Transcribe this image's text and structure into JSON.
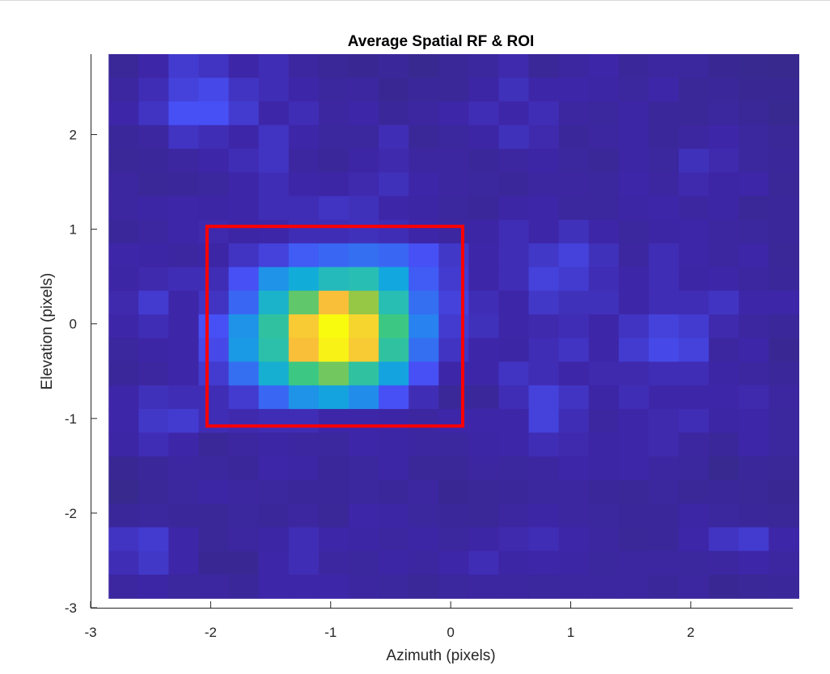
{
  "chart_data": {
    "type": "heatmap",
    "title": "Average Spatial RF & ROI",
    "xlabel": "Azimuth (pixels)",
    "ylabel": "Elevation (pixels)",
    "xlim": [
      -3,
      2.85
    ],
    "ylim": [
      -3,
      2.85
    ],
    "xticks": [
      -3,
      -2,
      -1,
      0,
      1,
      2
    ],
    "yticks": [
      -3,
      -2,
      -1,
      0,
      1,
      2
    ],
    "colormap": "parula",
    "grid": false,
    "heatmap": {
      "x_start": -2.85,
      "x_step": 0.25,
      "y_start": 2.85,
      "y_step": -0.25,
      "rows": [
        [
          0.05,
          0.1,
          0.16,
          0.14,
          0.1,
          0.12,
          0.08,
          0.05,
          0.04,
          0.06,
          0.03,
          0.05,
          0.07,
          0.11,
          0.05,
          0.08,
          0.1,
          0.06,
          0.08,
          0.07,
          0.04,
          0.03,
          0.02
        ],
        [
          0.08,
          0.12,
          0.18,
          0.2,
          0.14,
          0.12,
          0.1,
          0.07,
          0.08,
          0.04,
          0.06,
          0.05,
          0.09,
          0.13,
          0.1,
          0.1,
          0.09,
          0.07,
          0.1,
          0.05,
          0.06,
          0.04,
          0.04
        ],
        [
          0.1,
          0.14,
          0.22,
          0.22,
          0.16,
          0.1,
          0.12,
          0.08,
          0.1,
          0.06,
          0.08,
          0.1,
          0.12,
          0.1,
          0.12,
          0.08,
          0.07,
          0.09,
          0.06,
          0.05,
          0.07,
          0.05,
          0.03
        ],
        [
          0.06,
          0.08,
          0.14,
          0.12,
          0.1,
          0.14,
          0.1,
          0.07,
          0.07,
          0.12,
          0.05,
          0.07,
          0.09,
          0.13,
          0.11,
          0.06,
          0.08,
          0.09,
          0.06,
          0.08,
          0.1,
          0.07,
          0.05
        ],
        [
          0.05,
          0.06,
          0.08,
          0.1,
          0.12,
          0.14,
          0.08,
          0.06,
          0.09,
          0.11,
          0.08,
          0.08,
          0.06,
          0.08,
          0.09,
          0.07,
          0.05,
          0.09,
          0.07,
          0.13,
          0.11,
          0.07,
          0.06
        ],
        [
          0.08,
          0.05,
          0.06,
          0.07,
          0.1,
          0.12,
          0.1,
          0.09,
          0.11,
          0.13,
          0.1,
          0.08,
          0.07,
          0.06,
          0.08,
          0.08,
          0.07,
          0.1,
          0.08,
          0.11,
          0.09,
          0.1,
          0.05
        ],
        [
          0.08,
          0.09,
          0.1,
          0.09,
          0.1,
          0.12,
          0.12,
          0.14,
          0.13,
          0.1,
          0.09,
          0.07,
          0.06,
          0.09,
          0.1,
          0.07,
          0.07,
          0.09,
          0.1,
          0.08,
          0.09,
          0.05,
          0.06
        ],
        [
          0.06,
          0.08,
          0.1,
          0.11,
          0.09,
          0.1,
          0.12,
          0.12,
          0.13,
          0.12,
          0.1,
          0.08,
          0.09,
          0.12,
          0.1,
          0.13,
          0.1,
          0.07,
          0.09,
          0.1,
          0.08,
          0.07,
          0.06
        ],
        [
          0.1,
          0.09,
          0.08,
          0.09,
          0.14,
          0.18,
          0.25,
          0.28,
          0.3,
          0.28,
          0.22,
          0.15,
          0.1,
          0.12,
          0.15,
          0.18,
          0.13,
          0.08,
          0.12,
          0.1,
          0.08,
          0.1,
          0.05
        ],
        [
          0.09,
          0.11,
          0.12,
          0.12,
          0.22,
          0.4,
          0.48,
          0.56,
          0.58,
          0.46,
          0.25,
          0.16,
          0.1,
          0.12,
          0.18,
          0.16,
          0.12,
          0.1,
          0.12,
          0.09,
          0.1,
          0.08,
          0.06
        ],
        [
          0.11,
          0.16,
          0.1,
          0.14,
          0.28,
          0.52,
          0.72,
          0.88,
          0.78,
          0.58,
          0.3,
          0.18,
          0.12,
          0.1,
          0.15,
          0.13,
          0.13,
          0.1,
          0.12,
          0.12,
          0.14,
          0.1,
          0.1
        ],
        [
          0.1,
          0.12,
          0.1,
          0.22,
          0.4,
          0.62,
          0.9,
          1.0,
          0.92,
          0.68,
          0.35,
          0.16,
          0.13,
          0.1,
          0.11,
          0.12,
          0.1,
          0.14,
          0.18,
          0.16,
          0.11,
          0.08,
          0.06
        ],
        [
          0.07,
          0.09,
          0.1,
          0.2,
          0.42,
          0.6,
          0.88,
          0.98,
          0.9,
          0.62,
          0.3,
          0.14,
          0.1,
          0.09,
          0.12,
          0.14,
          0.1,
          0.16,
          0.2,
          0.18,
          0.08,
          0.1,
          0.04
        ],
        [
          0.06,
          0.08,
          0.1,
          0.16,
          0.3,
          0.5,
          0.68,
          0.74,
          0.62,
          0.45,
          0.22,
          0.1,
          0.1,
          0.14,
          0.12,
          0.1,
          0.11,
          0.11,
          0.12,
          0.12,
          0.09,
          0.08,
          0.06
        ],
        [
          0.1,
          0.13,
          0.12,
          0.12,
          0.16,
          0.28,
          0.4,
          0.45,
          0.38,
          0.22,
          0.12,
          0.05,
          0.06,
          0.12,
          0.18,
          0.14,
          0.09,
          0.12,
          0.1,
          0.1,
          0.1,
          0.11,
          0.08
        ],
        [
          0.1,
          0.15,
          0.16,
          0.12,
          0.11,
          0.12,
          0.12,
          0.1,
          0.1,
          0.09,
          0.08,
          0.1,
          0.1,
          0.1,
          0.18,
          0.12,
          0.08,
          0.1,
          0.11,
          0.12,
          0.09,
          0.1,
          0.07
        ],
        [
          0.09,
          0.12,
          0.1,
          0.05,
          0.08,
          0.09,
          0.08,
          0.07,
          0.1,
          0.09,
          0.08,
          0.07,
          0.09,
          0.1,
          0.12,
          0.11,
          0.09,
          0.1,
          0.11,
          0.08,
          0.06,
          0.1,
          0.07
        ],
        [
          0.04,
          0.06,
          0.08,
          0.07,
          0.06,
          0.1,
          0.09,
          0.06,
          0.07,
          0.09,
          0.05,
          0.05,
          0.08,
          0.07,
          0.08,
          0.1,
          0.09,
          0.1,
          0.08,
          0.07,
          0.03,
          0.06,
          0.05
        ],
        [
          0.02,
          0.05,
          0.07,
          0.09,
          0.08,
          0.07,
          0.06,
          0.06,
          0.07,
          0.06,
          0.08,
          0.04,
          0.05,
          0.06,
          0.07,
          0.08,
          0.06,
          0.05,
          0.07,
          0.05,
          0.06,
          0.05,
          0.04
        ],
        [
          0.06,
          0.07,
          0.06,
          0.05,
          0.07,
          0.06,
          0.08,
          0.05,
          0.1,
          0.09,
          0.07,
          0.06,
          0.05,
          0.08,
          0.09,
          0.08,
          0.07,
          0.06,
          0.06,
          0.09,
          0.07,
          0.06,
          0.05
        ],
        [
          0.14,
          0.16,
          0.1,
          0.05,
          0.08,
          0.09,
          0.12,
          0.1,
          0.09,
          0.08,
          0.09,
          0.07,
          0.09,
          0.11,
          0.12,
          0.1,
          0.08,
          0.05,
          0.06,
          0.1,
          0.14,
          0.16,
          0.1
        ],
        [
          0.12,
          0.15,
          0.1,
          0.04,
          0.04,
          0.1,
          0.12,
          0.08,
          0.07,
          0.09,
          0.08,
          0.1,
          0.12,
          0.09,
          0.1,
          0.09,
          0.07,
          0.08,
          0.08,
          0.07,
          0.08,
          0.1,
          0.08
        ],
        [
          0.08,
          0.09,
          0.07,
          0.08,
          0.06,
          0.1,
          0.1,
          0.1,
          0.08,
          0.07,
          0.05,
          0.07,
          0.08,
          0.08,
          0.07,
          0.08,
          0.08,
          0.08,
          0.06,
          0.08,
          0.04,
          0.05,
          0.06
        ]
      ]
    },
    "roi": {
      "x": [
        -2.03,
        0.1
      ],
      "y": [
        -1.08,
        1.03
      ],
      "color": "#ff0000"
    }
  }
}
